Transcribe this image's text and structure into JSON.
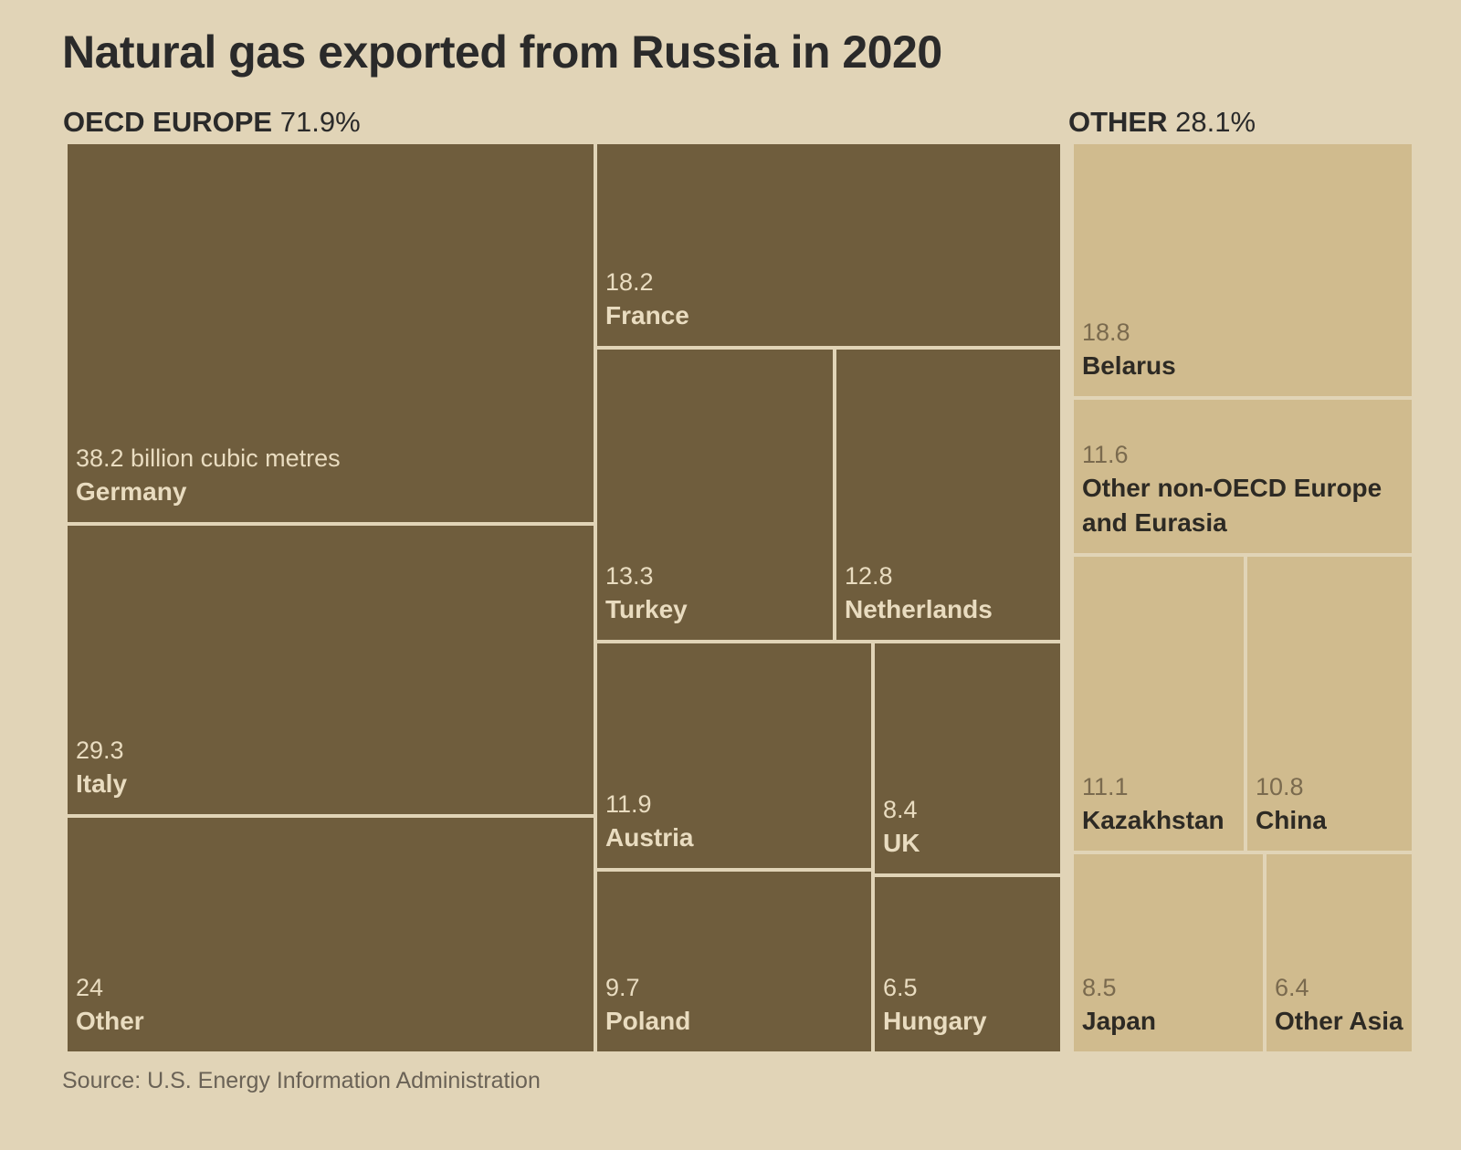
{
  "chart_data": {
    "type": "treemap",
    "title": "Natural gas exported from Russia in 2020",
    "source": "Source: U.S. Energy Information Administration",
    "groups": [
      {
        "name": "OECD EUROPE",
        "share": "71.9%",
        "color": "#6f5d3d",
        "items": [
          {
            "name": "Germany",
            "value": 38.2,
            "value_label": "38.2 billion cubic metres"
          },
          {
            "name": "Italy",
            "value": 29.3,
            "value_label": "29.3"
          },
          {
            "name": "Other",
            "value": 24,
            "value_label": "24"
          },
          {
            "name": "France",
            "value": 18.2,
            "value_label": "18.2"
          },
          {
            "name": "Turkey",
            "value": 13.3,
            "value_label": "13.3"
          },
          {
            "name": "Netherlands",
            "value": 12.8,
            "value_label": "12.8"
          },
          {
            "name": "Austria",
            "value": 11.9,
            "value_label": "11.9"
          },
          {
            "name": "UK",
            "value": 8.4,
            "value_label": "8.4"
          },
          {
            "name": "Poland",
            "value": 9.7,
            "value_label": "9.7"
          },
          {
            "name": "Hungary",
            "value": 6.5,
            "value_label": "6.5"
          }
        ]
      },
      {
        "name": "OTHER",
        "share": "28.1%",
        "color": "#d0bb8e",
        "items": [
          {
            "name": "Belarus",
            "value": 18.8,
            "value_label": "18.8"
          },
          {
            "name": "Other non-OECD Europe and Eurasia",
            "value": 11.6,
            "value_label": "11.6"
          },
          {
            "name": "Kazakhstan",
            "value": 11.1,
            "value_label": "11.1"
          },
          {
            "name": "China",
            "value": 10.8,
            "value_label": "10.8"
          },
          {
            "name": "Japan",
            "value": 8.5,
            "value_label": "8.5"
          },
          {
            "name": "Other Asia",
            "value": 6.4,
            "value_label": "6.4"
          }
        ]
      }
    ]
  }
}
